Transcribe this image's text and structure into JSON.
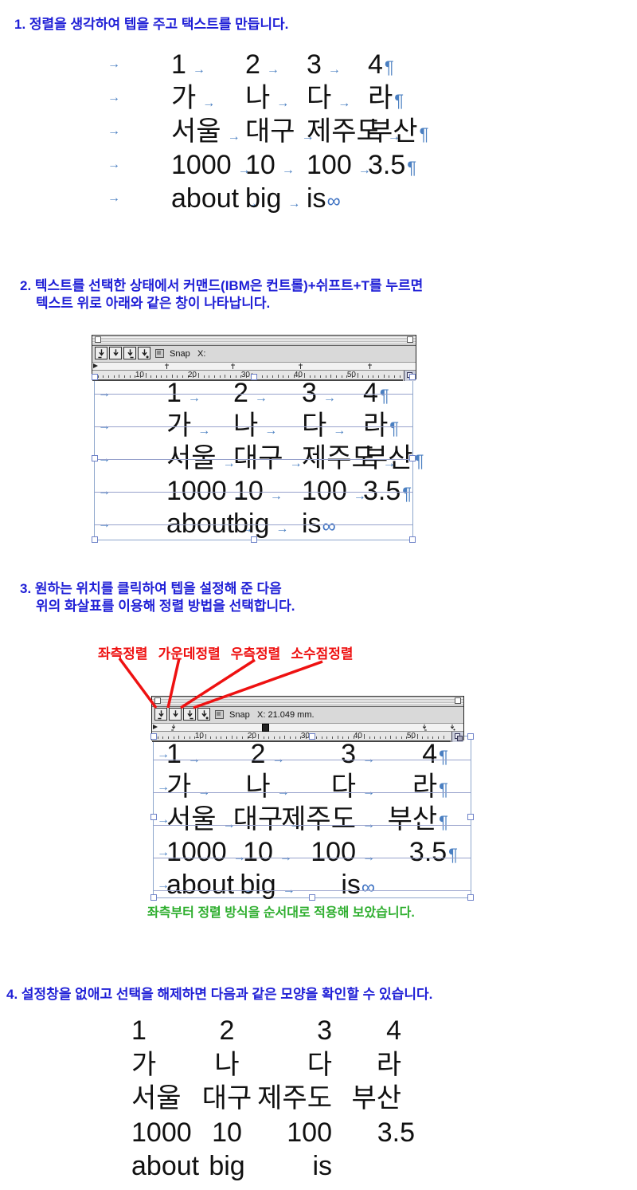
{
  "steps": {
    "s1": "1. 정렬을 생각하여 텝을 주고 택스트를 만듭니다.",
    "s2a": "2. 텍스트를 선택한 상태에서 커맨드(IBM은 컨트롤)+쉬프트+T를 누르면",
    "s2b": "텍스트 위로 아래와 같은 창이 나타납니다.",
    "s3a": "3. 원하는 위치를 클릭하여 텝을 설정해 준 다음",
    "s3b": "위의 화살표를 이용해 정렬 방법을 선택합니다.",
    "s4": "4. 설정창을 없애고 선택을 해제하면 다음과 같은 모양을 확인할 수 있습니다.",
    "caption_green": "좌측부터 정렬 방식을 순서대로 적용해 보았습니다."
  },
  "tab_labels": {
    "left": "좌측정렬",
    "center": "가운데정렬",
    "right": "우측정렬",
    "decimal": "소수점정렬"
  },
  "tab_window": {
    "snap_label": "Snap",
    "x_label_plain": "X:",
    "x_label_value": "X: 21.049 mm.",
    "ruler_numbers": [
      "10",
      "20",
      "30",
      "40",
      "50"
    ],
    "button_icons": [
      "tab-left-icon",
      "tab-center-icon",
      "tab-right-icon",
      "tab-decimal-icon"
    ]
  },
  "markers": {
    "tab": "→",
    "pilcrow": "¶",
    "end_of_text": "∞"
  },
  "colors": {
    "heading_blue": "#1f1fd6",
    "annotation_red": "#ee1111",
    "caption_green": "#2eae2e",
    "marker_blue": "#4a7fc1",
    "selection_blue": "#8ea6cc"
  },
  "blocks": {
    "b1": {
      "rows": [
        {
          "cells": [
            "1",
            "2",
            "3",
            "4"
          ],
          "end": "¶"
        },
        {
          "cells": [
            "가",
            "나",
            "다",
            "라"
          ],
          "end": "¶"
        },
        {
          "cells": [
            "서울",
            "대구",
            "제주도",
            "부산"
          ],
          "end": "¶"
        },
        {
          "cells": [
            "1000",
            "10",
            "100",
            "3.5"
          ],
          "end": "¶"
        },
        {
          "cells": [
            "about",
            "big",
            "is"
          ],
          "end": "∞"
        }
      ]
    },
    "b2": {
      "rows": [
        {
          "cells": [
            "1",
            "2",
            "3",
            "4"
          ],
          "end": "¶"
        },
        {
          "cells": [
            "가",
            "나",
            "다",
            "라"
          ],
          "end": "¶"
        },
        {
          "cells": [
            "서울",
            "대구",
            "제주도",
            "부산"
          ],
          "end": "¶"
        },
        {
          "cells": [
            "1000",
            "10",
            "100",
            "3.5"
          ],
          "end": "¶"
        },
        {
          "cells": [
            "about",
            "big",
            "is"
          ],
          "end": "∞"
        }
      ]
    },
    "b3": {
      "rows": [
        {
          "cells": [
            "1",
            "2",
            "3",
            "4"
          ],
          "end": "¶"
        },
        {
          "cells": [
            "가",
            "나",
            "다",
            "라"
          ],
          "end": "¶"
        },
        {
          "cells": [
            "서울",
            "대구",
            "제주도",
            "부산"
          ],
          "end": "¶"
        },
        {
          "cells": [
            "1000",
            "10",
            "100",
            "3.5"
          ],
          "end": "¶"
        },
        {
          "cells": [
            "about",
            "big",
            "is"
          ],
          "end": "∞"
        }
      ]
    },
    "b4": {
      "rows": [
        {
          "cells": [
            "1",
            "2",
            "3",
            "4"
          ]
        },
        {
          "cells": [
            "가",
            "나",
            "다",
            "라"
          ]
        },
        {
          "cells": [
            "서울",
            "대구",
            "제주도",
            "부산"
          ]
        },
        {
          "cells": [
            "1000",
            "10",
            "100",
            "3.5"
          ]
        },
        {
          "cells": [
            "about",
            "big",
            "is"
          ]
        }
      ]
    }
  }
}
